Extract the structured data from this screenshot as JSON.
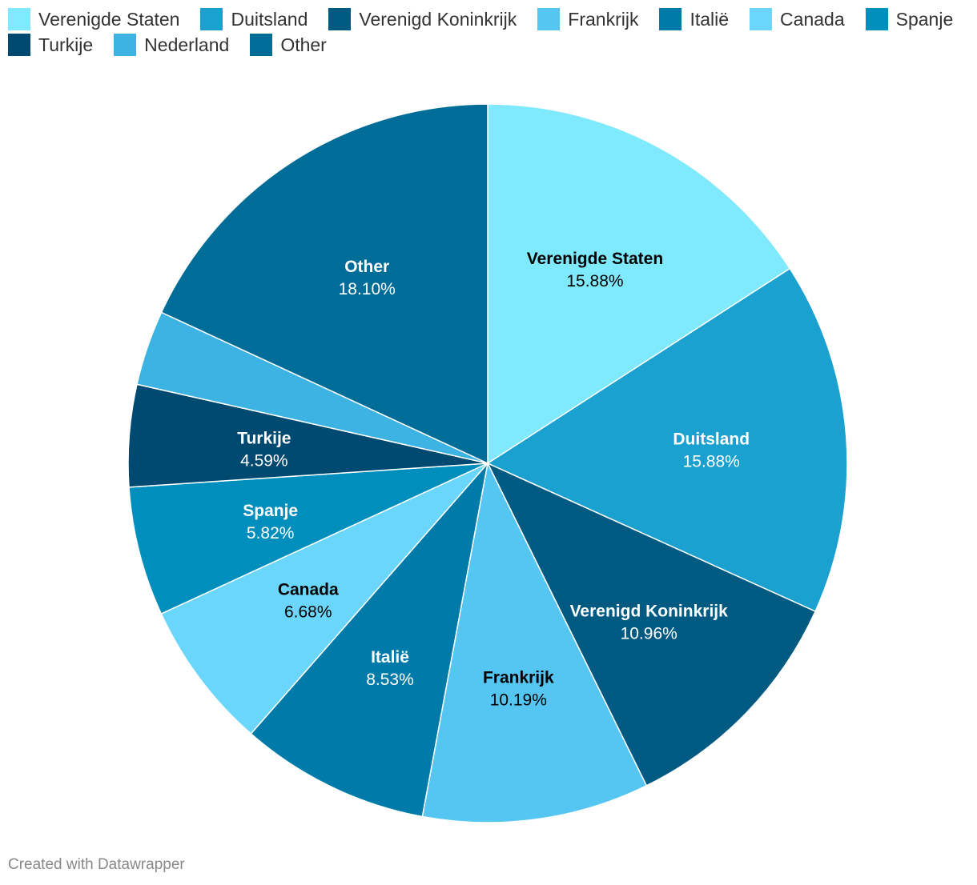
{
  "chart_data": {
    "type": "pie",
    "title": "",
    "start_angle_deg": 0,
    "direction": "clockwise",
    "slices": [
      {
        "label": "Verenigde Staten",
        "value": 15.88,
        "value_label": "15.88%",
        "color": "#7fe9fd",
        "label_color": "#000000",
        "show_label": true
      },
      {
        "label": "Duitsland",
        "value": 15.88,
        "value_label": "15.88%",
        "color": "#1ba1cf",
        "label_color": "#ffffff",
        "show_label": true
      },
      {
        "label": "Verenigd Koninkrijk",
        "value": 10.96,
        "value_label": "10.96%",
        "color": "#005a82",
        "label_color": "#ffffff",
        "show_label": true
      },
      {
        "label": "Frankrijk",
        "value": 10.19,
        "value_label": "10.19%",
        "color": "#55c5f1",
        "label_color": "#000000",
        "show_label": true
      },
      {
        "label": "Italië",
        "value": 8.53,
        "value_label": "8.53%",
        "color": "#007ba9",
        "label_color": "#ffffff",
        "show_label": true
      },
      {
        "label": "Canada",
        "value": 6.68,
        "value_label": "6.68%",
        "color": "#6ad6fc",
        "label_color": "#000000",
        "show_label": true
      },
      {
        "label": "Spanje",
        "value": 5.82,
        "value_label": "5.82%",
        "color": "#008fbd",
        "label_color": "#ffffff",
        "show_label": true
      },
      {
        "label": "Turkije",
        "value": 4.59,
        "value_label": "4.59%",
        "color": "#004a72",
        "label_color": "#ffffff",
        "show_label": true
      },
      {
        "label": "Nederland",
        "value": 3.37,
        "value_label": "",
        "color": "#3cb3e2",
        "label_color": "#ffffff",
        "show_label": false
      },
      {
        "label": "Other",
        "value": 18.1,
        "value_label": "18.10%",
        "color": "#006c98",
        "label_color": "#ffffff",
        "show_label": true
      }
    ],
    "legend": {
      "position": "top-left",
      "rows": [
        [
          "Verenigde Staten",
          "Duitsland",
          "Verenigd Koninkrijk",
          "Frankrijk",
          "Italië",
          "Canada",
          "Spanje"
        ],
        [
          "Turkije",
          "Nederland",
          "Other"
        ]
      ]
    }
  },
  "footer": {
    "credit": "Created with Datawrapper"
  }
}
